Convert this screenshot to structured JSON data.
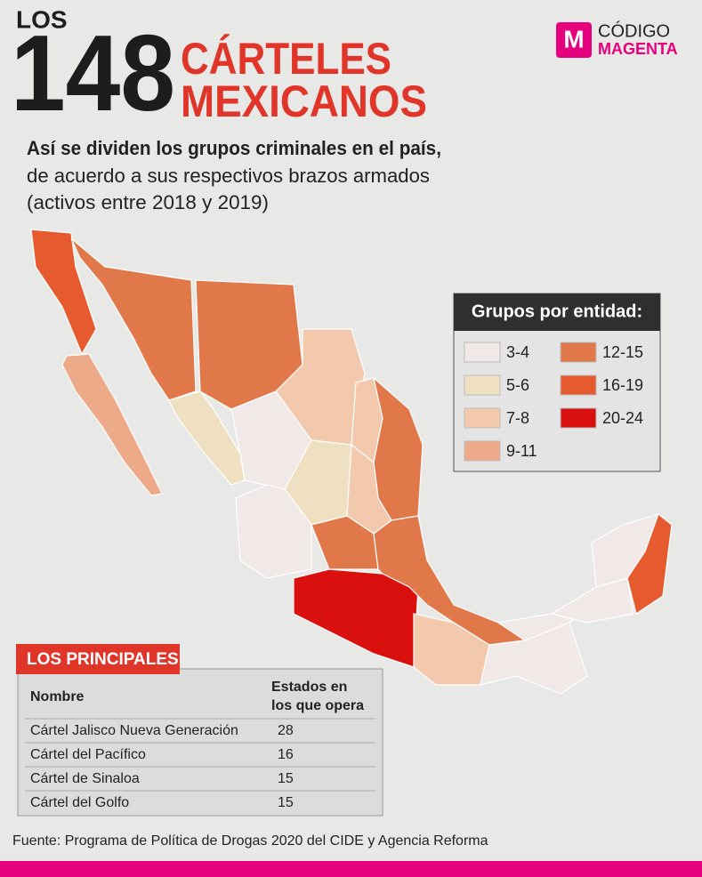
{
  "header": {
    "kicker": "LOS",
    "number": "148",
    "title_line1": "CÁRTELES",
    "title_line2": "MEXICANOS",
    "subtitle_bold": "Así se dividen los grupos criminales en el país,",
    "subtitle_line2": "de acuerdo a sus respectivos brazos armados",
    "subtitle_line3": "(activos entre 2018 y 2019)"
  },
  "logo": {
    "mark": "M",
    "line1": "CÓDIGO",
    "line2": "MAGENTA"
  },
  "legend": {
    "title": "Grupos por entidad:",
    "items": [
      {
        "label": "3-4",
        "color": "#f1e8e8"
      },
      {
        "label": "5-6",
        "color": "#eee0c0"
      },
      {
        "label": "7-8",
        "color": "#f3c9ae"
      },
      {
        "label": "9-11",
        "color": "#edaa88"
      },
      {
        "label": "12-15",
        "color": "#e0784a"
      },
      {
        "label": "16-19",
        "color": "#e65a30"
      },
      {
        "label": "20-24",
        "color": "#d9100e"
      }
    ]
  },
  "table": {
    "title": "LOS PRINCIPALES",
    "header": {
      "name": "Nombre",
      "states_line1": "Estados en",
      "states_line2": "los que opera"
    },
    "rows": [
      [
        "Cártel Jalisco Nueva Generación",
        28
      ],
      [
        "Cártel del Pacífico",
        16
      ],
      [
        "Cártel de Sinaloa",
        15
      ],
      [
        "Cártel del Golfo",
        15
      ]
    ]
  },
  "source": "Fuente: Programa de Política de Drogas 2020 del CIDE y Agencia Reforma"
}
